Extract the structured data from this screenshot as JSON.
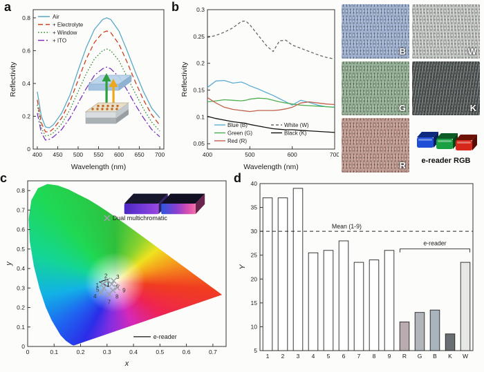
{
  "figure": {
    "panel_labels": {
      "a": "a",
      "b": "b",
      "c": "c",
      "d": "d"
    }
  },
  "chart_data": [
    {
      "id": "a",
      "type": "line",
      "xlabel": "Wavelength (nm)",
      "ylabel": "Reflectivity",
      "xlim": [
        390,
        710
      ],
      "ylim": [
        0,
        0.85
      ],
      "xticks": [
        400,
        450,
        500,
        550,
        600,
        650,
        700
      ],
      "yticks": [
        0,
        0.2,
        0.4,
        0.6,
        0.8
      ],
      "legend_position": "top-left",
      "x": [
        400,
        410,
        420,
        430,
        440,
        460,
        480,
        500,
        520,
        540,
        560,
        570,
        580,
        600,
        620,
        640,
        660,
        680,
        700
      ],
      "series": [
        {
          "name": "Air",
          "color": "#5aa7c7",
          "dash": "solid",
          "y": [
            0.35,
            0.2,
            0.135,
            0.13,
            0.15,
            0.22,
            0.33,
            0.48,
            0.62,
            0.73,
            0.79,
            0.8,
            0.79,
            0.72,
            0.6,
            0.47,
            0.35,
            0.25,
            0.19
          ]
        },
        {
          "name": "+ Electrolyte",
          "color": "#cc3d1a",
          "dash": "dashed",
          "y": [
            0.3,
            0.16,
            0.105,
            0.105,
            0.125,
            0.19,
            0.29,
            0.42,
            0.55,
            0.65,
            0.71,
            0.72,
            0.71,
            0.64,
            0.53,
            0.41,
            0.3,
            0.21,
            0.145
          ]
        },
        {
          "name": "+ Window",
          "color": "#2e8b2e",
          "dash": "dotted",
          "y": [
            0.27,
            0.13,
            0.08,
            0.085,
            0.1,
            0.155,
            0.24,
            0.35,
            0.46,
            0.55,
            0.6,
            0.61,
            0.6,
            0.54,
            0.44,
            0.34,
            0.245,
            0.165,
            0.11
          ]
        },
        {
          "name": "+ ITO",
          "color": "#7b2fbe",
          "dash": "dashdot",
          "y": [
            0.22,
            0.1,
            0.055,
            0.06,
            0.075,
            0.12,
            0.19,
            0.28,
            0.37,
            0.45,
            0.49,
            0.5,
            0.49,
            0.44,
            0.36,
            0.27,
            0.19,
            0.12,
            0.075
          ]
        }
      ]
    },
    {
      "id": "b",
      "type": "line",
      "xlabel": "Wavelength (nm)",
      "ylabel": "Reflectivity",
      "xlim": [
        400,
        700
      ],
      "ylim": [
        0.04,
        0.3
      ],
      "xticks": [
        400,
        500,
        600,
        700
      ],
      "yticks": [
        0.05,
        0.1,
        0.15,
        0.2,
        0.25,
        0.3
      ],
      "x": [
        400,
        420,
        440,
        460,
        480,
        490,
        500,
        520,
        540,
        555,
        570,
        585,
        600,
        620,
        640,
        660,
        680,
        700
      ],
      "series": [
        {
          "name": "Blue (B)",
          "color": "#5bacd6",
          "dash": "solid",
          "y": [
            0.155,
            0.167,
            0.168,
            0.163,
            0.165,
            0.162,
            0.158,
            0.152,
            0.145,
            0.14,
            0.134,
            0.128,
            0.122,
            0.131,
            0.127,
            0.122,
            0.119,
            0.118
          ]
        },
        {
          "name": "Green (G)",
          "color": "#4caf50",
          "dash": "solid",
          "y": [
            0.128,
            0.13,
            0.132,
            0.131,
            0.13,
            0.131,
            0.133,
            0.135,
            0.134,
            0.131,
            0.128,
            0.126,
            0.124,
            0.122,
            0.121,
            0.12,
            0.119,
            0.118
          ]
        },
        {
          "name": "Red (R)",
          "color": "#c0604a",
          "dash": "solid",
          "y": [
            0.136,
            0.126,
            0.118,
            0.114,
            0.112,
            0.111,
            0.11,
            0.112,
            0.112,
            0.112,
            0.113,
            0.115,
            0.118,
            0.126,
            0.128,
            0.126,
            0.124,
            0.123
          ]
        },
        {
          "name": "White (W)",
          "color": "#666666",
          "dash": "dashedfine",
          "y": [
            0.248,
            0.252,
            0.258,
            0.266,
            0.278,
            0.279,
            0.272,
            0.252,
            0.232,
            0.222,
            0.242,
            0.243,
            0.234,
            0.228,
            0.222,
            0.216,
            0.211,
            0.208
          ]
        },
        {
          "name": "Black (K)",
          "color": "#111111",
          "dash": "solid",
          "y": [
            0.101,
            0.097,
            0.094,
            0.091,
            0.089,
            0.088,
            0.086,
            0.083,
            0.08,
            0.078,
            0.077,
            0.076,
            0.076,
            0.075,
            0.074,
            0.073,
            0.072,
            0.071
          ]
        }
      ],
      "legend": {
        "col1": [
          "Blue (B)",
          "Green (G)",
          "Red (R)"
        ],
        "col2": [
          "White (W)",
          "Black (K)"
        ]
      }
    },
    {
      "id": "c",
      "type": "scatter",
      "xlabel": "x",
      "ylabel": "y",
      "xlim": [
        0,
        0.75
      ],
      "ylim": [
        0,
        0.85
      ],
      "xticks": [
        0,
        0.1,
        0.2,
        0.3,
        0.4,
        0.5,
        0.6,
        0.7
      ],
      "yticks": [
        0,
        0.1,
        0.2,
        0.3,
        0.4,
        0.5,
        0.6,
        0.7,
        0.8
      ],
      "white_point": [
        0.33,
        0.33
      ],
      "marker_symbol": "x",
      "marker_color": "#9aa0a6",
      "legend_top": "Dual multichromatic",
      "legend_bottom": "e-reader",
      "markers": [
        {
          "id": "1",
          "x": 0.284,
          "y": 0.322
        },
        {
          "id": "2",
          "x": 0.301,
          "y": 0.338
        },
        {
          "id": "3",
          "x": 0.325,
          "y": 0.337
        },
        {
          "id": "4",
          "x": 0.278,
          "y": 0.276
        },
        {
          "id": "5",
          "x": 0.288,
          "y": 0.3
        },
        {
          "id": "6",
          "x": 0.318,
          "y": 0.32
        },
        {
          "id": "7",
          "x": 0.308,
          "y": 0.268
        },
        {
          "id": "8",
          "x": 0.322,
          "y": 0.288
        },
        {
          "id": "9",
          "x": 0.338,
          "y": 0.302
        }
      ],
      "ereader_triangle": [
        [
          0.272,
          0.331
        ],
        [
          0.303,
          0.345
        ],
        [
          0.305,
          0.307
        ]
      ],
      "cie_locus": [
        [
          0.1741,
          0.005
        ],
        [
          0.166,
          0.009
        ],
        [
          0.1566,
          0.0177
        ],
        [
          0.144,
          0.0297
        ],
        [
          0.1241,
          0.0578
        ],
        [
          0.0913,
          0.1327
        ],
        [
          0.0687,
          0.2007
        ],
        [
          0.0454,
          0.295
        ],
        [
          0.0235,
          0.4127
        ],
        [
          0.0082,
          0.5384
        ],
        [
          0.0039,
          0.6548
        ],
        [
          0.0139,
          0.7502
        ],
        [
          0.0389,
          0.812
        ],
        [
          0.0743,
          0.8338
        ],
        [
          0.1142,
          0.8262
        ],
        [
          0.1547,
          0.8059
        ],
        [
          0.1896,
          0.7816
        ],
        [
          0.2296,
          0.7543
        ],
        [
          0.2658,
          0.7243
        ],
        [
          0.3016,
          0.6923
        ],
        [
          0.3373,
          0.6589
        ],
        [
          0.3731,
          0.6245
        ],
        [
          0.4087,
          0.5896
        ],
        [
          0.4441,
          0.5547
        ],
        [
          0.4788,
          0.5202
        ],
        [
          0.5125,
          0.4866
        ],
        [
          0.5448,
          0.4544
        ],
        [
          0.5752,
          0.4242
        ],
        [
          0.6029,
          0.3965
        ],
        [
          0.627,
          0.3725
        ],
        [
          0.6482,
          0.3514
        ],
        [
          0.6658,
          0.334
        ],
        [
          0.6801,
          0.3197
        ],
        [
          0.6915,
          0.3083
        ],
        [
          0.7006,
          0.2993
        ],
        [
          0.7079,
          0.292
        ],
        [
          0.7347,
          0.2653
        ]
      ]
    },
    {
      "id": "d",
      "type": "bar",
      "ylabel": "Y",
      "categories": [
        "1",
        "2",
        "3",
        "4",
        "5",
        "6",
        "7",
        "8",
        "9",
        "R",
        "G",
        "B",
        "K",
        "W"
      ],
      "values": [
        37,
        37,
        39,
        25.5,
        26,
        28,
        23.5,
        24,
        26,
        11,
        13,
        13.5,
        8.5,
        23.5
      ],
      "bar_colors": [
        "#ffffff",
        "#ffffff",
        "#ffffff",
        "#ffffff",
        "#ffffff",
        "#ffffff",
        "#ffffff",
        "#ffffff",
        "#ffffff",
        "#b9abb0",
        "#b0b6ba",
        "#aab4bf",
        "#686e71",
        "#e6e8e6"
      ],
      "ylim": [
        5,
        40
      ],
      "yticks": [
        5,
        10,
        15,
        20,
        25,
        30,
        35,
        40
      ],
      "mean_line": {
        "value": 30,
        "label": "Mean (1-9)"
      },
      "group_label": {
        "text": "e-reader",
        "from": "R",
        "to": "W",
        "bracket_y": 26.3
      }
    }
  ],
  "swatches": {
    "tiles": [
      {
        "label": "B",
        "base": "#9fb3d6"
      },
      {
        "label": "W",
        "base": "#c9cdc9"
      },
      {
        "label": "G",
        "base": "#93b193"
      },
      {
        "label": "K",
        "base": "#4f5554"
      },
      {
        "label": "R",
        "base": "#c59a8e"
      }
    ],
    "e_reader_caption": "e-reader RGB"
  }
}
